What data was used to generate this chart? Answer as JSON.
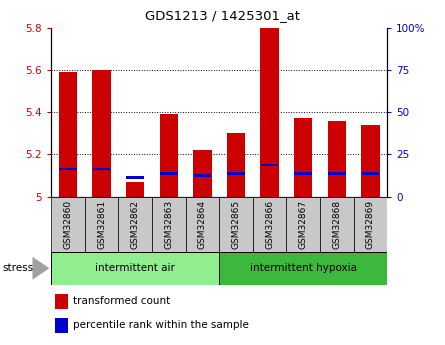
{
  "title": "GDS1213 / 1425301_at",
  "samples": [
    "GSM32860",
    "GSM32861",
    "GSM32862",
    "GSM32863",
    "GSM32864",
    "GSM32865",
    "GSM32866",
    "GSM32867",
    "GSM32868",
    "GSM32869"
  ],
  "red_values": [
    5.59,
    5.6,
    5.07,
    5.39,
    5.22,
    5.3,
    5.8,
    5.37,
    5.36,
    5.34
  ],
  "blue_values": [
    5.13,
    5.13,
    5.09,
    5.11,
    5.1,
    5.11,
    5.15,
    5.11,
    5.11,
    5.11
  ],
  "ylim": [
    5.0,
    5.8
  ],
  "y_left_ticks": [
    5.0,
    5.2,
    5.4,
    5.6,
    5.8
  ],
  "y_right_ticks": [
    0,
    25,
    50,
    75,
    100
  ],
  "ytick_labels_left": [
    "5",
    "5.2",
    "5.4",
    "5.6",
    "5.8"
  ],
  "ytick_labels_right": [
    "0",
    "25",
    "50",
    "75",
    "100%"
  ],
  "group1_label": "intermittent air",
  "group2_label": "intermittent hypoxia",
  "group1_indices": [
    0,
    1,
    2,
    3,
    4
  ],
  "group2_indices": [
    5,
    6,
    7,
    8,
    9
  ],
  "group1_color": "#90EE90",
  "group2_color": "#3CB93C",
  "stress_label": "stress",
  "legend1_label": "transformed count",
  "legend2_label": "percentile rank within the sample",
  "bar_color_red": "#CC0000",
  "bar_color_blue": "#0000CC",
  "bar_width": 0.55,
  "tick_color_left": "#CC0000",
  "tick_color_right": "#0000CC",
  "sample_box_color": "#C8C8C8",
  "figsize": [
    4.45,
    3.45
  ],
  "dpi": 100
}
